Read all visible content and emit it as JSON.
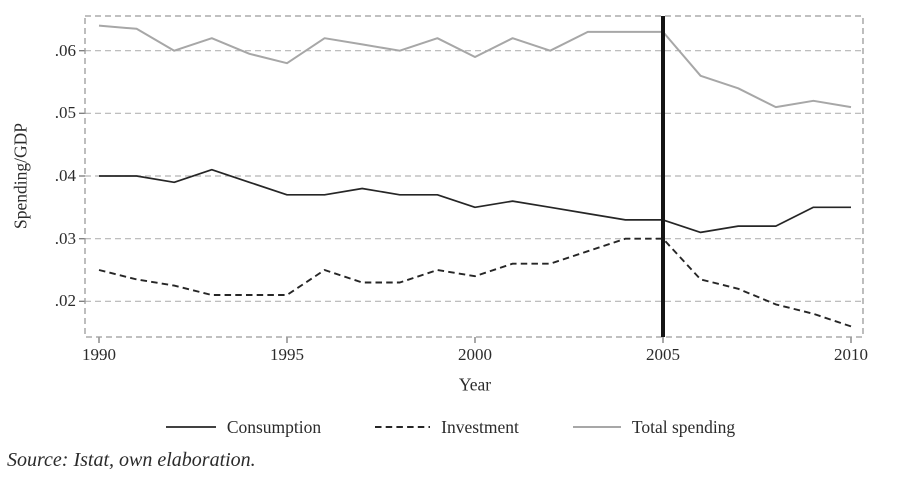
{
  "chart_data": {
    "type": "line",
    "title": "",
    "xlabel": "Year",
    "ylabel": "Spending/GDP",
    "x": [
      1990,
      1991,
      1992,
      1993,
      1994,
      1995,
      1996,
      1997,
      1998,
      1999,
      2000,
      2001,
      2002,
      2003,
      2004,
      2005,
      2006,
      2007,
      2008,
      2009,
      2010
    ],
    "series": [
      {
        "name": "Consumption",
        "style": "solid",
        "color": "#262626",
        "values": [
          0.04,
          0.04,
          0.039,
          0.041,
          0.039,
          0.037,
          0.037,
          0.038,
          0.037,
          0.037,
          0.035,
          0.036,
          0.035,
          0.034,
          0.033,
          0.033,
          0.031,
          0.032,
          0.032,
          0.035,
          0.035
        ]
      },
      {
        "name": "Investment",
        "style": "dashed",
        "color": "#262626",
        "values": [
          0.025,
          0.0235,
          0.0225,
          0.021,
          0.021,
          0.021,
          0.025,
          0.023,
          0.023,
          0.025,
          0.024,
          0.026,
          0.026,
          0.028,
          0.03,
          0.03,
          0.0235,
          0.022,
          0.0195,
          0.018,
          0.016
        ]
      },
      {
        "name": "Total spending",
        "style": "solid",
        "color": "#a7a7a7",
        "values": [
          0.064,
          0.0635,
          0.06,
          0.062,
          0.0595,
          0.058,
          0.062,
          0.061,
          0.06,
          0.062,
          0.059,
          0.062,
          0.06,
          0.063,
          0.063,
          0.063,
          0.056,
          0.054,
          0.051,
          0.052,
          0.051
        ]
      }
    ],
    "x_ticks": [
      1990,
      1995,
      2000,
      2005,
      2010
    ],
    "x_tick_labels": [
      "1990",
      "1995",
      "2000",
      "2005",
      "2010"
    ],
    "y_ticks": [
      0.02,
      0.03,
      0.04,
      0.05,
      0.06
    ],
    "y_tick_labels": [
      ".02",
      ".03",
      ".04",
      ".05",
      ".06"
    ],
    "xlim": [
      1989.6,
      2010.3
    ],
    "ylim": [
      0.0143,
      0.0656
    ],
    "reference_line": {
      "x": 2005,
      "color": "#141414"
    },
    "grid": "horizontal-dashed",
    "legend_position": "bottom"
  },
  "source_note": "Source: Istat, own elaboration."
}
